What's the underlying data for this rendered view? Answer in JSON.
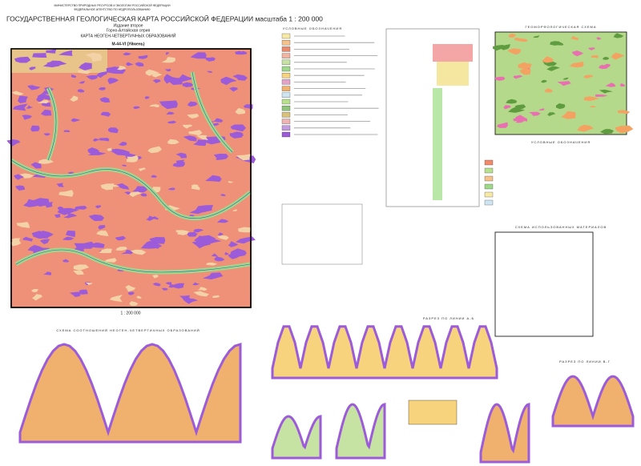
{
  "header": {
    "ministry": "МИНИСТЕРСТВО ПРИРОДНЫХ РЕСУРСОВ И ЭКОЛОГИИ РОССИЙСКОЙ ФЕДЕРАЦИИ",
    "agency": "ФЕДЕРАЛЬНОЕ АГЕНТСТВО ПО НЕДРОПОЛЬЗОВАНИЮ",
    "title": "ГОСУДАРСТВЕННАЯ ГЕОЛОГИЧЕСКАЯ КАРТА РОССИЙСКОЙ ФЕДЕРАЦИИ масштаба 1 : 200 000",
    "edition": "Издание второе",
    "series": "Горно-Алтайская серия",
    "map_title": "КАРТА НЕОГЕН-ЧЕТВЕРТИЧНЫХ ОБРАЗОВАНИЙ",
    "sheet": "M-44-VI (Уймень)",
    "scale": "1 : 200 000"
  },
  "sections": {
    "legend_title": "УСЛОВНЫЕ ОБОЗНАЧЕНИЯ",
    "correlation_title": "СХЕМА СООТНОШЕНИЙ НЕОГЕН-ЧЕТВЕРТИЧНЫХ ОБРАЗОВАНИЙ",
    "section_ab_title": "РАЗРЕЗ ПО ЛИНИИ А-Б",
    "geomorph_title": "ГЕОМОРФОЛОГИЧЕСКАЯ СХЕМА",
    "geomorph_legend_title": "УСЛОВНЫЕ ОБОЗНАЧЕНИЯ",
    "materials_title": "СХЕМА ИСПОЛЬЗОВАННЫХ МАТЕРИАЛОВ",
    "section_vg_title": "РАЗРЕЗ ПО ЛИНИИ В-Г"
  }
}
